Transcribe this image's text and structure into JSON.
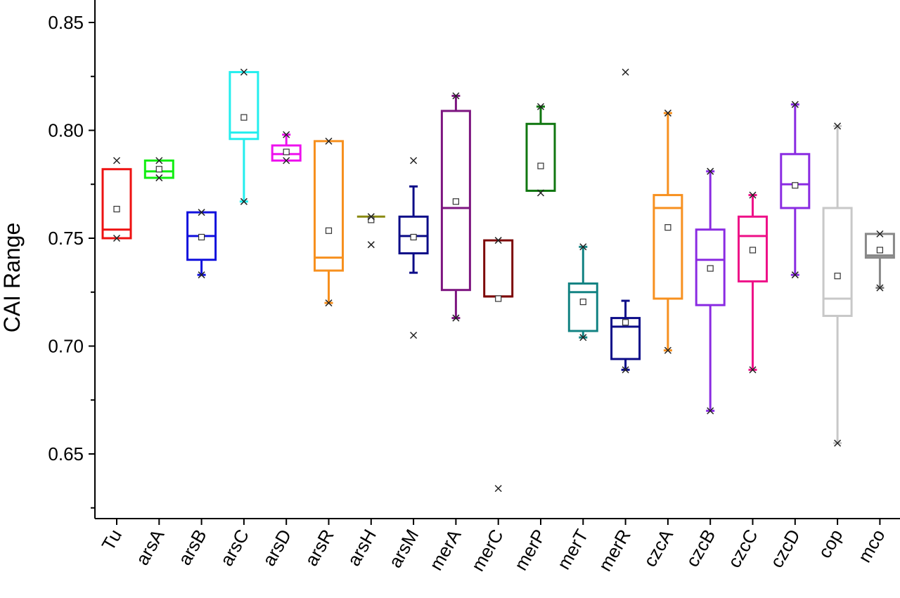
{
  "chart_data": {
    "type": "box",
    "title": "",
    "xlabel": "",
    "ylabel": "CAI Range",
    "ylim": [
      0.62,
      0.86
    ],
    "yticks": [
      0.65,
      0.7,
      0.75,
      0.8,
      0.85
    ],
    "ytick_labels": [
      "0.65",
      "0.70",
      "0.75",
      "0.80",
      "0.85"
    ],
    "grid": false,
    "legend": "none",
    "series": [
      {
        "name": "Tu",
        "color": "#ee1111",
        "q1": 0.75,
        "median": 0.754,
        "q3": 0.782,
        "wlow": 0.75,
        "whigh": 0.782,
        "mean": 0.7635,
        "min": 0.75,
        "max": 0.786,
        "outliers": []
      },
      {
        "name": "arsA",
        "color": "#11ee11",
        "q1": 0.778,
        "median": 0.781,
        "q3": 0.786,
        "wlow": 0.778,
        "whigh": 0.786,
        "mean": 0.782,
        "min": 0.778,
        "max": 0.786,
        "outliers": []
      },
      {
        "name": "arsB",
        "color": "#1111dd",
        "q1": 0.74,
        "median": 0.751,
        "q3": 0.762,
        "wlow": 0.733,
        "whigh": 0.762,
        "mean": 0.7505,
        "min": 0.733,
        "max": 0.762,
        "outliers": []
      },
      {
        "name": "arsC",
        "color": "#22eeee",
        "q1": 0.796,
        "median": 0.799,
        "q3": 0.827,
        "wlow": 0.767,
        "whigh": 0.827,
        "mean": 0.806,
        "min": 0.767,
        "max": 0.827,
        "outliers": []
      },
      {
        "name": "arsD",
        "color": "#ee11ee",
        "q1": 0.786,
        "median": 0.789,
        "q3": 0.793,
        "wlow": 0.786,
        "whigh": 0.798,
        "mean": 0.79,
        "min": 0.786,
        "max": 0.798,
        "outliers": []
      },
      {
        "name": "arsR",
        "color": "#f7901e",
        "q1": 0.735,
        "median": 0.741,
        "q3": 0.795,
        "wlow": 0.72,
        "whigh": 0.795,
        "mean": 0.7535,
        "min": 0.72,
        "max": 0.795,
        "outliers": []
      },
      {
        "name": "arsH",
        "color": "#8a8a10",
        "q1": 0.76,
        "median": 0.76,
        "q3": 0.76,
        "wlow": 0.76,
        "whigh": 0.76,
        "mean": 0.7585,
        "min": 0.747,
        "max": 0.76,
        "outliers": []
      },
      {
        "name": "arsM",
        "color": "#0c0c88",
        "q1": 0.743,
        "median": 0.751,
        "q3": 0.76,
        "wlow": 0.734,
        "whigh": 0.774,
        "mean": 0.7505,
        "min": 0.705,
        "max": 0.786,
        "outliers": []
      },
      {
        "name": "merA",
        "color": "#7d1580",
        "q1": 0.726,
        "median": 0.764,
        "q3": 0.809,
        "wlow": 0.713,
        "whigh": 0.816,
        "mean": 0.767,
        "min": 0.713,
        "max": 0.816,
        "outliers": []
      },
      {
        "name": "merC",
        "color": "#7d0808",
        "q1": 0.723,
        "median": 0.723,
        "q3": 0.749,
        "wlow": 0.723,
        "whigh": 0.749,
        "mean": 0.722,
        "min": 0.634,
        "max": 0.749,
        "outliers": []
      },
      {
        "name": "merP",
        "color": "#117711",
        "q1": 0.772,
        "median": 0.772,
        "q3": 0.803,
        "wlow": 0.772,
        "whigh": 0.811,
        "mean": 0.7835,
        "min": 0.771,
        "max": 0.811,
        "outliers": []
      },
      {
        "name": "merT",
        "color": "#138383",
        "q1": 0.707,
        "median": 0.725,
        "q3": 0.729,
        "wlow": 0.704,
        "whigh": 0.746,
        "mean": 0.7205,
        "min": 0.704,
        "max": 0.746,
        "outliers": []
      },
      {
        "name": "merR",
        "color": "#0c0c88",
        "q1": 0.694,
        "median": 0.709,
        "q3": 0.713,
        "wlow": 0.689,
        "whigh": 0.721,
        "mean": 0.711,
        "min": 0.689,
        "max": 0.827,
        "outliers": []
      },
      {
        "name": "czcA",
        "color": "#f7901e",
        "q1": 0.722,
        "median": 0.764,
        "q3": 0.77,
        "wlow": 0.698,
        "whigh": 0.808,
        "mean": 0.755,
        "min": 0.698,
        "max": 0.808,
        "outliers": []
      },
      {
        "name": "czcB",
        "color": "#8a2be2",
        "q1": 0.719,
        "median": 0.74,
        "q3": 0.754,
        "wlow": 0.67,
        "whigh": 0.781,
        "mean": 0.736,
        "min": 0.67,
        "max": 0.781,
        "outliers": []
      },
      {
        "name": "czcC",
        "color": "#ee1188",
        "q1": 0.73,
        "median": 0.751,
        "q3": 0.76,
        "wlow": 0.689,
        "whigh": 0.77,
        "mean": 0.7445,
        "min": 0.689,
        "max": 0.77,
        "outliers": []
      },
      {
        "name": "czcD",
        "color": "#8a2be2",
        "q1": 0.764,
        "median": 0.775,
        "q3": 0.789,
        "wlow": 0.733,
        "whigh": 0.812,
        "mean": 0.7745,
        "min": 0.733,
        "max": 0.812,
        "outliers": []
      },
      {
        "name": "cop",
        "color": "#c8c8c8",
        "q1": 0.714,
        "median": 0.722,
        "q3": 0.764,
        "wlow": 0.655,
        "whigh": 0.802,
        "mean": 0.7325,
        "min": 0.655,
        "max": 0.802,
        "outliers": []
      },
      {
        "name": "mco",
        "color": "#888888",
        "q1": 0.741,
        "median": 0.742,
        "q3": 0.752,
        "wlow": 0.727,
        "whigh": 0.752,
        "mean": 0.7445,
        "min": 0.727,
        "max": 0.752,
        "outliers": []
      }
    ]
  }
}
